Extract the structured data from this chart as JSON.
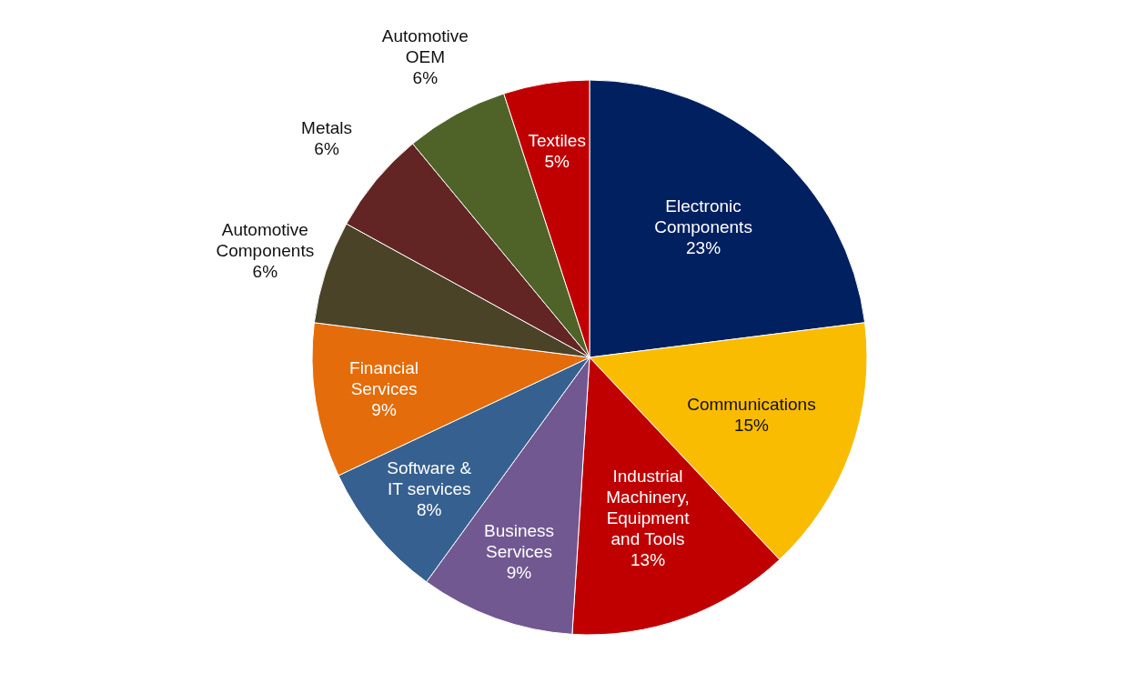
{
  "chart_data": {
    "type": "pie",
    "categories": [
      "Electronic Components",
      "Communications",
      "Industrial Machinery, Equipment and Tools",
      "Business Services",
      "Software & IT services",
      "Financial Services",
      "Automotive Components",
      "Metals",
      "Automotive OEM",
      "Textiles"
    ],
    "values": [
      23,
      15,
      13,
      9,
      8,
      9,
      6,
      6,
      6,
      5
    ],
    "value_labels": [
      "23%",
      "15%",
      "13%",
      "9%",
      "8%",
      "9%",
      "6%",
      "6%",
      "6%",
      "5%"
    ],
    "colors": [
      "#002060",
      "#f9bc00",
      "#c00000",
      "#715891",
      "#36608f",
      "#e46c0a",
      "#4a4328",
      "#632523",
      "#4f6228",
      "#c00000"
    ]
  }
}
